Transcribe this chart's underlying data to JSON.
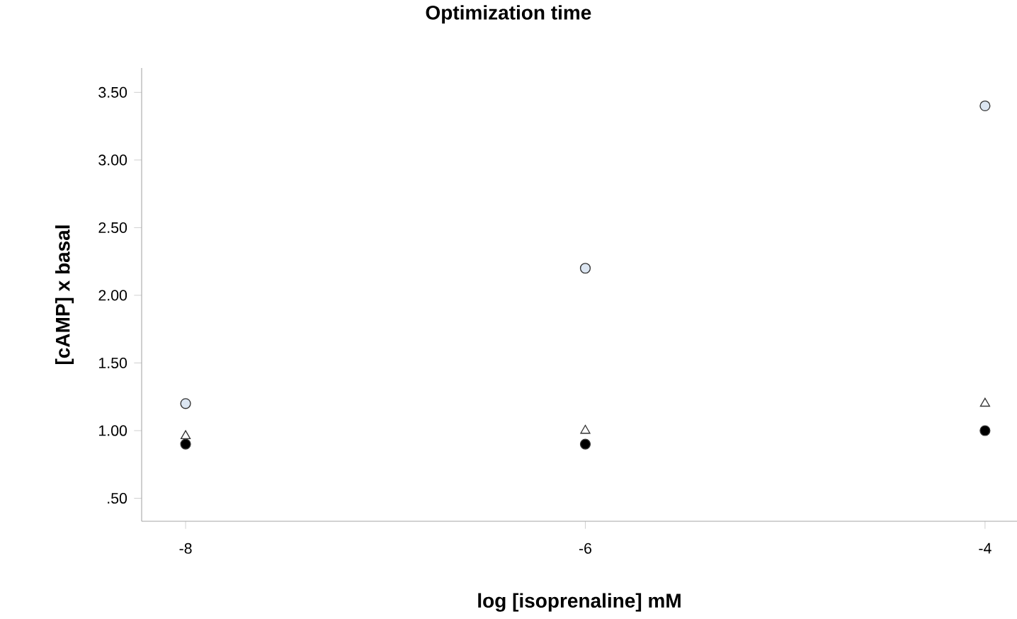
{
  "chart_data": {
    "type": "scatter",
    "title": "Optimization time",
    "xlabel": "log [isoprenaline] mM",
    "ylabel": "[cAMP] x basal",
    "x": [
      -8,
      -6,
      -4
    ],
    "series": [
      {
        "color": "#dce6f2",
        "marker": "circle",
        "values": [
          1.2,
          2.2,
          3.4
        ]
      },
      {
        "color": "#ffffff",
        "marker": "triangle",
        "values": [
          0.96,
          1.0,
          1.2
        ]
      },
      {
        "color": "#000000",
        "marker": "circle",
        "values": [
          0.9,
          0.9,
          1.0
        ]
      }
    ],
    "xlim": [
      -8.22,
      -3.84
    ],
    "ylim": [
      0.33,
      3.68
    ],
    "xticks": [
      -8,
      -6,
      -4
    ],
    "yticks": [
      {
        "value": 0.5,
        "label": ".50"
      },
      {
        "value": 1.0,
        "label": "1.00"
      },
      {
        "value": 1.5,
        "label": "1.50"
      },
      {
        "value": 2.0,
        "label": "2.00"
      },
      {
        "value": 2.5,
        "label": "2.50"
      },
      {
        "value": 3.0,
        "label": "3.00"
      },
      {
        "value": 3.5,
        "label": "3.50"
      }
    ],
    "grid": false
  }
}
